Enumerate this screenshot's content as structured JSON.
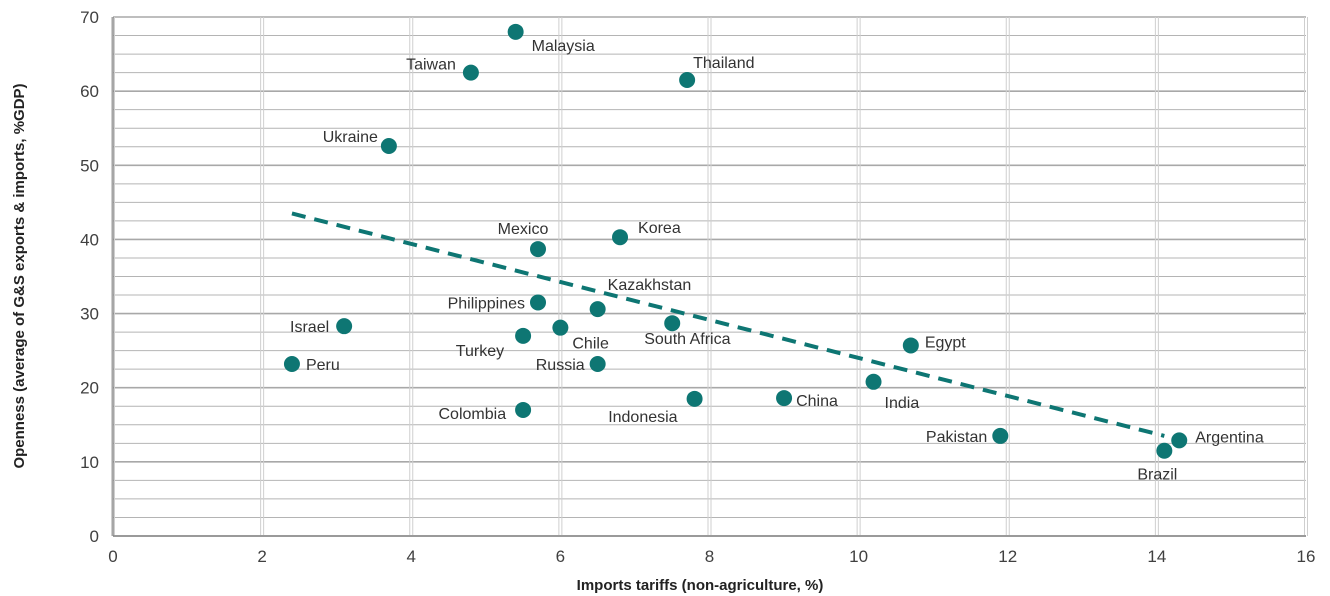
{
  "chart_data": {
    "type": "scatter",
    "xlabel": "Imports tariffs (non-agriculture,  %)",
    "ylabel": "Openness (average of G&S exports & imports, %GDP)",
    "xlim": [
      0,
      16
    ],
    "ylim": [
      0,
      70
    ],
    "x_ticks": [
      0,
      2,
      4,
      6,
      8,
      10,
      12,
      14,
      16
    ],
    "y_ticks": [
      0,
      10,
      20,
      30,
      40,
      50,
      60,
      70
    ],
    "grid": true,
    "legend": "none",
    "marker_color": "#0e7673",
    "points": [
      {
        "label": "Malaysia",
        "x": 5.4,
        "y": 68.0
      },
      {
        "label": "Taiwan",
        "x": 4.8,
        "y": 62.5
      },
      {
        "label": "Thailand",
        "x": 7.7,
        "y": 61.5
      },
      {
        "label": "Ukraine",
        "x": 3.7,
        "y": 52.6
      },
      {
        "label": "Mexico",
        "x": 5.7,
        "y": 38.7
      },
      {
        "label": "Korea",
        "x": 6.8,
        "y": 40.3
      },
      {
        "label": "Kazakhstan",
        "x": 6.5,
        "y": 30.6
      },
      {
        "label": "Philippines",
        "x": 5.7,
        "y": 31.5
      },
      {
        "label": "Israel",
        "x": 3.1,
        "y": 28.3
      },
      {
        "label": "Turkey",
        "x": 5.5,
        "y": 27.0
      },
      {
        "label": "Chile",
        "x": 6.0,
        "y": 28.1
      },
      {
        "label": "South Africa",
        "x": 7.5,
        "y": 28.7
      },
      {
        "label": "Peru",
        "x": 2.4,
        "y": 23.2
      },
      {
        "label": "Russia",
        "x": 6.5,
        "y": 23.2
      },
      {
        "label": "Egypt",
        "x": 10.7,
        "y": 25.7
      },
      {
        "label": "India",
        "x": 10.2,
        "y": 20.8
      },
      {
        "label": "China",
        "x": 9.0,
        "y": 18.6
      },
      {
        "label": "Indonesia",
        "x": 7.8,
        "y": 18.5
      },
      {
        "label": "Colombia",
        "x": 5.5,
        "y": 17.0
      },
      {
        "label": "Pakistan",
        "x": 11.9,
        "y": 13.5
      },
      {
        "label": "Argentina",
        "x": 14.3,
        "y": 12.9
      },
      {
        "label": "Brazil",
        "x": 14.1,
        "y": 11.5
      }
    ],
    "trendline": {
      "style": "dashed",
      "color": "#0e7673",
      "x": [
        2.4,
        14.1
      ],
      "y": [
        43.5,
        13.5
      ]
    }
  }
}
